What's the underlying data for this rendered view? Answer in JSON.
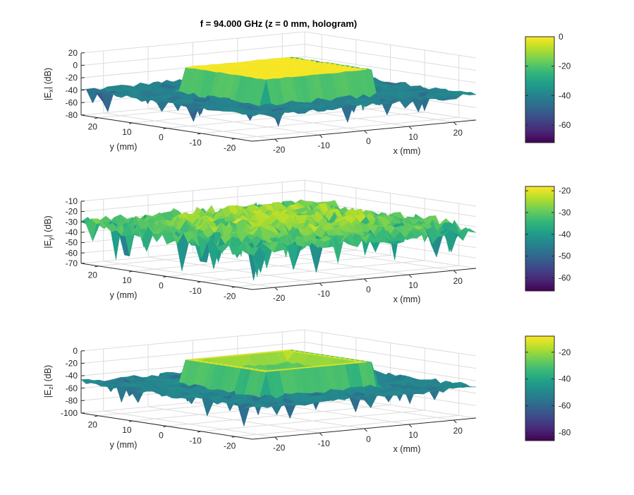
{
  "title": "f = 94.000 GHz (z = 0 mm, hologram)",
  "colormap": [
    "#440154",
    "#482878",
    "#3e4989",
    "#31688e",
    "#26828e",
    "#1f9e89",
    "#35b779",
    "#6ece58",
    "#b5de2b",
    "#fde725"
  ],
  "gridColor": "#dcdcdc",
  "axisColor": "#262626",
  "chart_data": [
    {
      "type": "surface",
      "component": "x",
      "zlabel_base": "|E",
      "zlabel_sub": "x",
      "zlabel_tail": "| (dB)",
      "xlabel": "x (mm)",
      "ylabel": "y (mm)",
      "x_ticks": [
        "-20",
        "-10",
        "0",
        "10",
        "20"
      ],
      "y_ticks": [
        "20",
        "10",
        "0",
        "-10",
        "-20"
      ],
      "z_ticks": [
        "20",
        "0",
        "-20",
        "-40",
        "-60",
        "-80"
      ],
      "zlim": [
        -80,
        20
      ],
      "clim": [
        -72,
        0
      ],
      "colorbar_ticks": [
        "0",
        "-20",
        "-40",
        "-60"
      ],
      "floor_db": -40,
      "plateau_db": 0,
      "plateau_x": [
        -12,
        12
      ],
      "plateau_y": [
        -12,
        12
      ]
    },
    {
      "type": "surface",
      "component": "y",
      "zlabel_base": "|E",
      "zlabel_sub": "y",
      "zlabel_tail": "| (dB)",
      "xlabel": "x (mm)",
      "ylabel": "y (mm)",
      "x_ticks": [
        "-20",
        "-10",
        "0",
        "10",
        "20"
      ],
      "y_ticks": [
        "20",
        "10",
        "0",
        "-10",
        "-20"
      ],
      "z_ticks": [
        "-10",
        "-20",
        "-30",
        "-40",
        "-50",
        "-60",
        "-70"
      ],
      "zlim": [
        -70,
        -10
      ],
      "clim": [
        -66,
        -18
      ],
      "colorbar_ticks": [
        "-20",
        "-30",
        "-40",
        "-50",
        "-60"
      ],
      "floor_db": -32
    },
    {
      "type": "surface",
      "component": "z",
      "zlabel_base": "|E",
      "zlabel_sub": "z",
      "zlabel_tail": "| (dB)",
      "xlabel": "x (mm)",
      "ylabel": "y (mm)",
      "x_ticks": [
        "-20",
        "-10",
        "0",
        "10",
        "20"
      ],
      "y_ticks": [
        "20",
        "10",
        "0",
        "-10",
        "-20"
      ],
      "z_ticks": [
        "0",
        "-20",
        "-40",
        "-60",
        "-80",
        "-100"
      ],
      "zlim": [
        -100,
        0
      ],
      "clim": [
        -86,
        -8
      ],
      "colorbar_ticks": [
        "-20",
        "-40",
        "-60",
        "-80"
      ],
      "floor_db": -50,
      "ridge_db": -12,
      "ridge_x": [
        -12,
        12
      ],
      "ridge_y": [
        -12,
        12
      ]
    }
  ]
}
